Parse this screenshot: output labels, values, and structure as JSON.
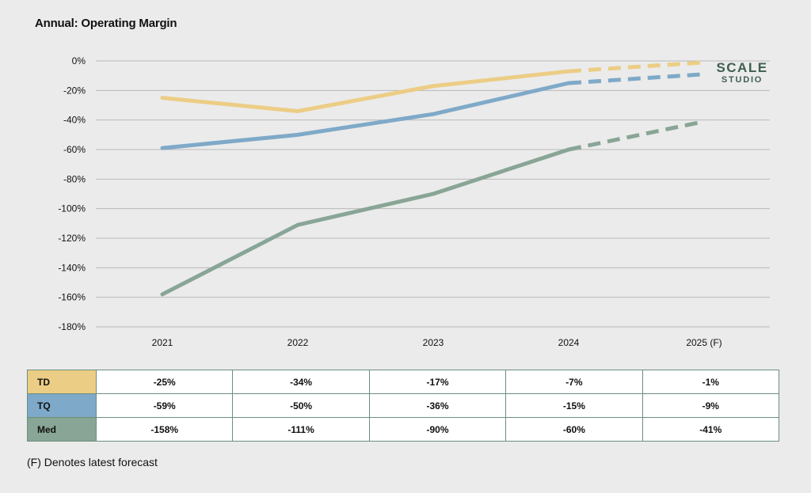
{
  "chart_data": {
    "type": "line",
    "title": "Annual: Operating Margin",
    "categories": [
      "2021",
      "2022",
      "2023",
      "2024",
      "2025 (F)"
    ],
    "forecast_from_index": 3,
    "ylim": [
      -180,
      0
    ],
    "yticks": [
      0,
      -20,
      -40,
      -60,
      -80,
      -100,
      -120,
      -140,
      -160,
      -180
    ],
    "ytick_labels": [
      "0%",
      "-20%",
      "-40%",
      "-60%",
      "-80%",
      "-100%",
      "-120%",
      "-140%",
      "-160%",
      "-180%"
    ],
    "grid": true,
    "series": [
      {
        "name": "TD",
        "color": "#eccd85",
        "values": [
          -25,
          -34,
          -17,
          -7,
          -1
        ],
        "labels": [
          "-25%",
          "-34%",
          "-17%",
          "-7%",
          "-1%"
        ]
      },
      {
        "name": "TQ",
        "color": "#7fa9c8",
        "values": [
          -59,
          -50,
          -36,
          -15,
          -9
        ],
        "labels": [
          "-59%",
          "-50%",
          "-36%",
          "-15%",
          "-9%"
        ]
      },
      {
        "name": "Med",
        "color": "#88a595",
        "values": [
          -158,
          -111,
          -90,
          -60,
          -41
        ],
        "labels": [
          "-158%",
          "-111%",
          "-90%",
          "-60%",
          "-41%"
        ]
      }
    ]
  },
  "logo": {
    "line1": "SCALE",
    "line2": "STUDIO"
  },
  "footnote": "(F) Denotes latest forecast",
  "colors": {
    "background": "#ebebeb",
    "grid": "#b9b9b9",
    "table_border": "#6d8f7e",
    "logo": "#3f5f50"
  }
}
